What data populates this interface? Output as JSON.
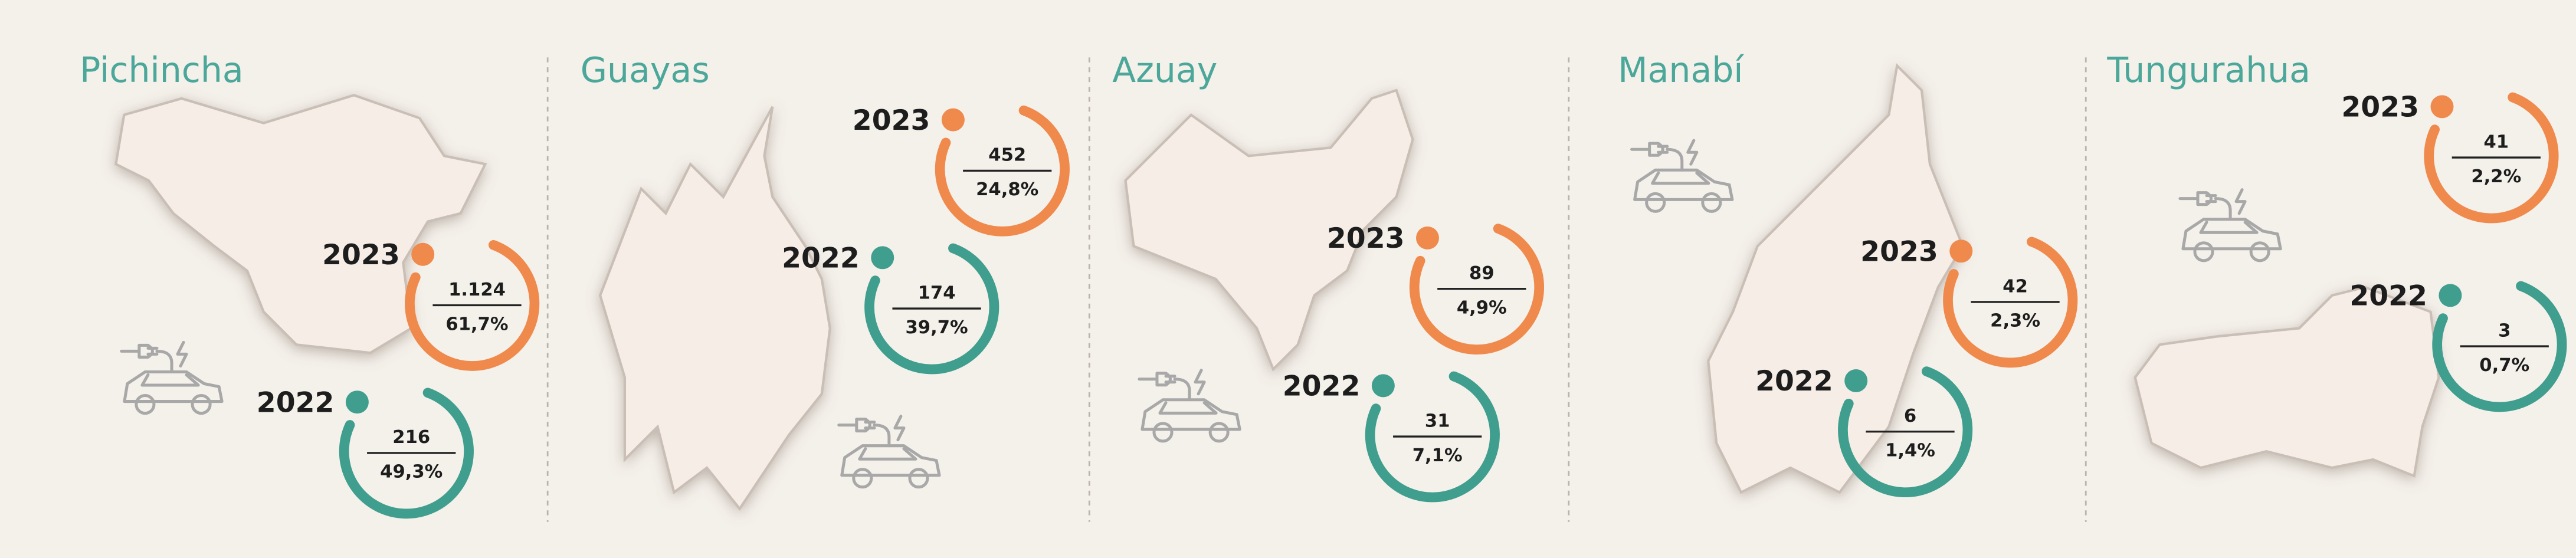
{
  "panels": [
    {
      "title": "Pichincha",
      "entries": [
        {
          "year": "2023",
          "count": "1.124",
          "share": "61,7%"
        },
        {
          "year": "2022",
          "count": "216",
          "share": "49,3%"
        }
      ]
    },
    {
      "title": "Guayas",
      "entries": [
        {
          "year": "2023",
          "count": "452",
          "share": "24,8%"
        },
        {
          "year": "2022",
          "count": "174",
          "share": "39,7%"
        }
      ]
    },
    {
      "title": "Azuay",
      "entries": [
        {
          "year": "2023",
          "count": "89",
          "share": "4,9%"
        },
        {
          "year": "2022",
          "count": "31",
          "share": "7,1%"
        }
      ]
    },
    {
      "title": "Manabí",
      "entries": [
        {
          "year": "2023",
          "count": "42",
          "share": "2,3%"
        },
        {
          "year": "2022",
          "count": "6",
          "share": "1,4%"
        }
      ]
    },
    {
      "title": "Tungurahua",
      "entries": [
        {
          "year": "2023",
          "count": "41",
          "share": "2,2%"
        },
        {
          "year": "2022",
          "count": "3",
          "share": "0,7%"
        }
      ]
    }
  ]
}
